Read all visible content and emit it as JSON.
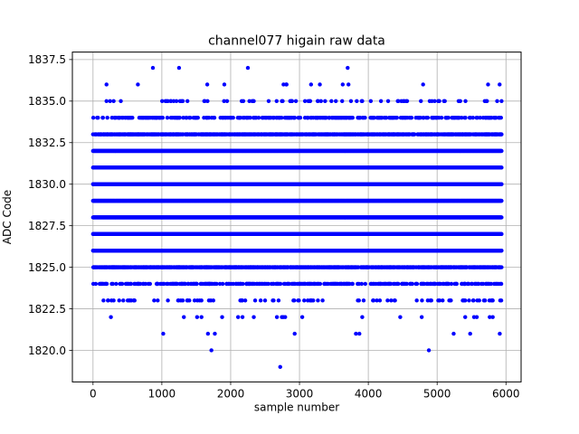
{
  "chart_data": {
    "type": "scatter",
    "title": "channel077 higain raw data",
    "xlabel": "sample number",
    "ylabel": "ADC Code",
    "xlim": [
      -300,
      6220
    ],
    "ylim": [
      1818.1,
      1837.95
    ],
    "xticks": [
      0,
      1000,
      2000,
      3000,
      4000,
      5000,
      6000
    ],
    "xtick_labels": [
      "0",
      "1000",
      "2000",
      "3000",
      "4000",
      "5000",
      "6000"
    ],
    "yticks": [
      1820.0,
      1822.5,
      1825.0,
      1827.5,
      1830.0,
      1832.5,
      1835.0,
      1837.5
    ],
    "ytick_labels": [
      "1820.0",
      "1822.5",
      "1825.0",
      "1827.5",
      "1830.0",
      "1832.5",
      "1835.0",
      "1837.5"
    ],
    "grid": true,
    "marker_color": "#0000ff",
    "sample_count": 5940,
    "level_density": {
      "1826": 1.0,
      "1827": 1.0,
      "1828": 1.0,
      "1829": 1.0,
      "1830": 1.0,
      "1831": 1.0,
      "1832": 1.0,
      "1825": 0.55,
      "1833": 0.55,
      "1824": 0.22,
      "1834": 0.22,
      "1823": 0.06,
      "1835": 0.05,
      "1822": 0.015,
      "1836": 0.012
    },
    "rare_points": [
      {
        "x": 870,
        "y": 1837
      },
      {
        "x": 1250,
        "y": 1837
      },
      {
        "x": 2250,
        "y": 1837
      },
      {
        "x": 3700,
        "y": 1837
      },
      {
        "x": 1020,
        "y": 1821
      },
      {
        "x": 1670,
        "y": 1821
      },
      {
        "x": 1770,
        "y": 1821
      },
      {
        "x": 2930,
        "y": 1821
      },
      {
        "x": 3820,
        "y": 1821
      },
      {
        "x": 3870,
        "y": 1821
      },
      {
        "x": 5240,
        "y": 1821
      },
      {
        "x": 5480,
        "y": 1821
      },
      {
        "x": 5910,
        "y": 1821
      },
      {
        "x": 1720,
        "y": 1820
      },
      {
        "x": 4880,
        "y": 1820
      },
      {
        "x": 2720,
        "y": 1819
      }
    ]
  }
}
